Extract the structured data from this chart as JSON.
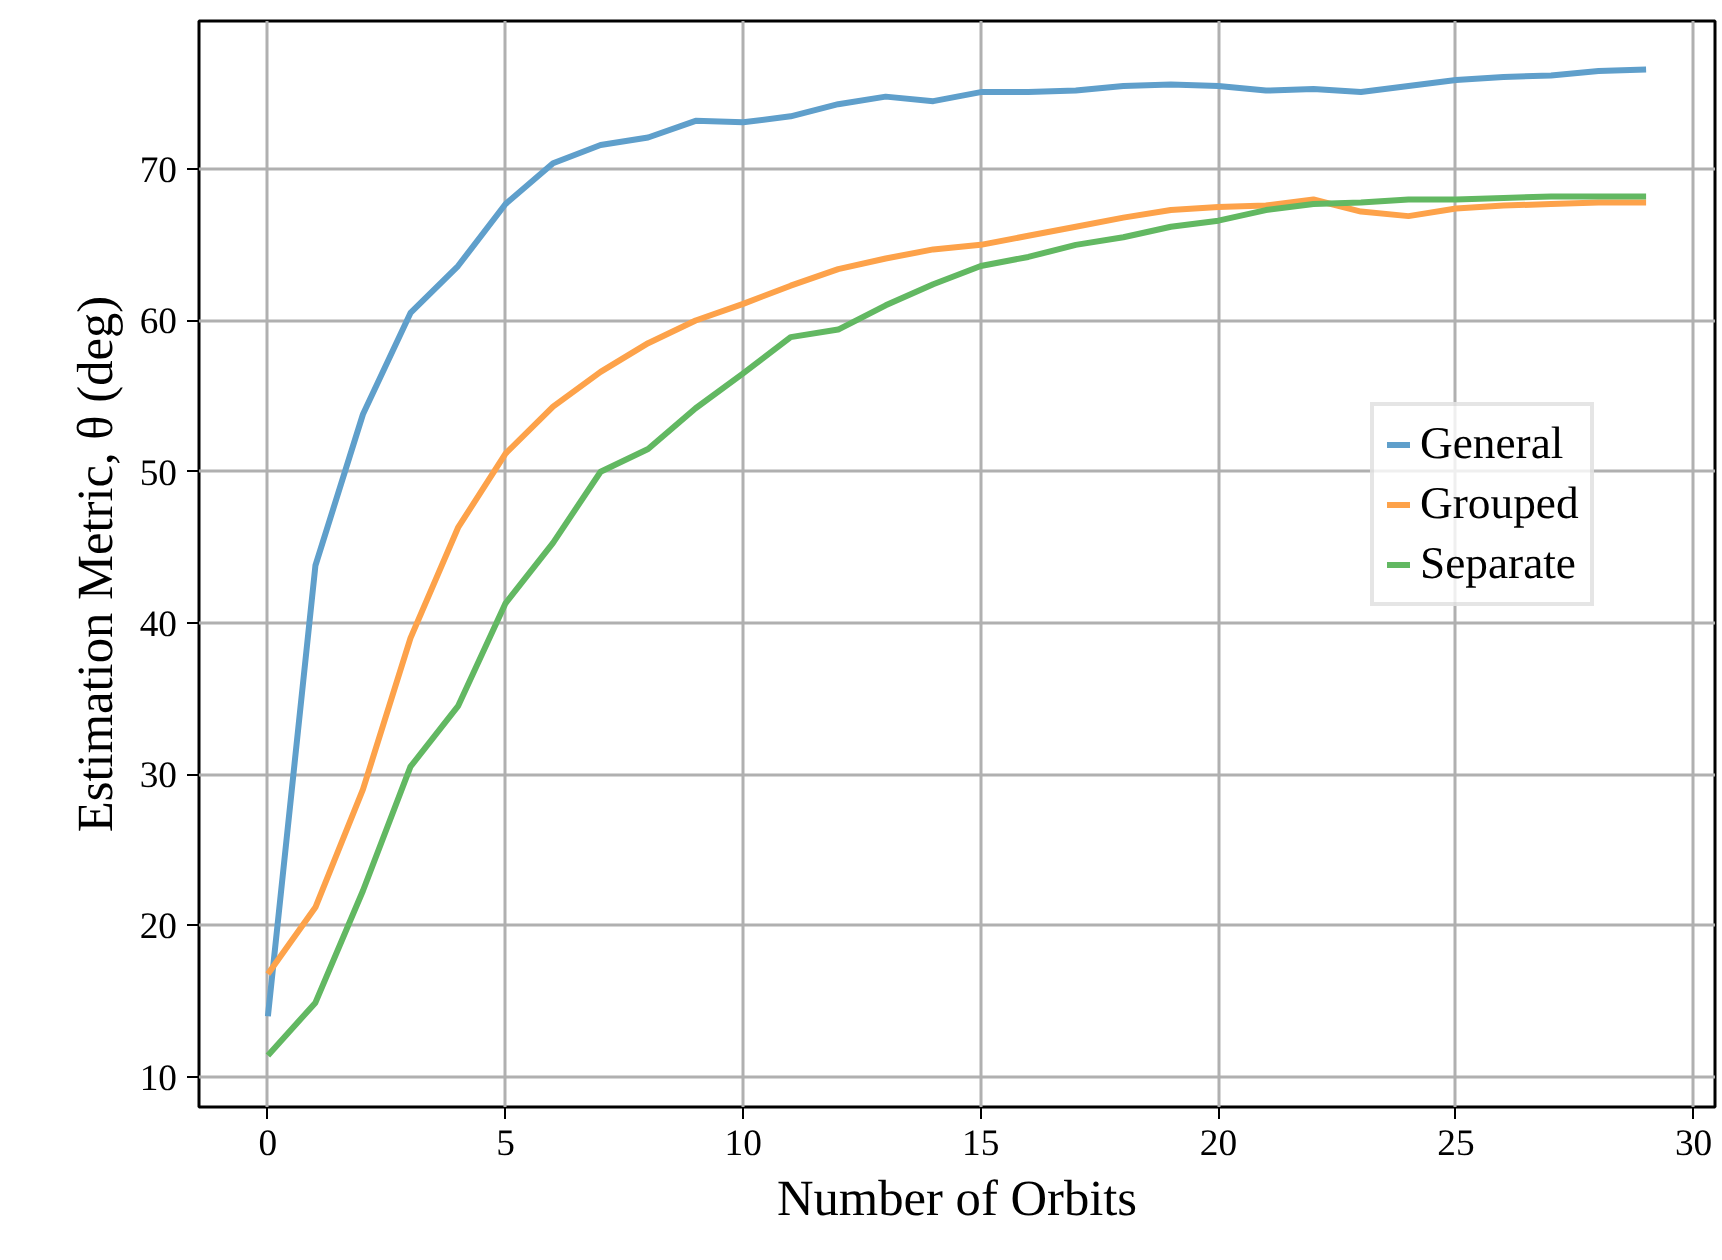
{
  "chart_data": {
    "type": "line",
    "xlabel": "Number of Orbits",
    "ylabel": "Estimation Metric, θ (deg)",
    "x": [
      0,
      1,
      2,
      3,
      4,
      5,
      6,
      7,
      8,
      9,
      10,
      11,
      12,
      13,
      14,
      15,
      16,
      17,
      18,
      19,
      20,
      21,
      22,
      23,
      24,
      25,
      26,
      27,
      28,
      29
    ],
    "series": [
      {
        "name": "General",
        "color": "#5f9fcb",
        "values": [
          14,
          43.8,
          53.8,
          60.5,
          63.6,
          67.7,
          70.4,
          71.6,
          72.1,
          73.2,
          73.1,
          73.5,
          74.3,
          74.8,
          74.5,
          75.1,
          75.1,
          75.2,
          75.5,
          75.6,
          75.5,
          75.2,
          75.3,
          75.1,
          75.5,
          75.9,
          76.1,
          76.2,
          76.5,
          76.6
        ]
      },
      {
        "name": "Grouped",
        "color": "#fda24a",
        "values": [
          16.8,
          21.2,
          29,
          39,
          46.3,
          51.2,
          54.3,
          56.6,
          58.5,
          60,
          61.1,
          62.3,
          63.4,
          64.1,
          64.7,
          65,
          65.6,
          66.2,
          66.8,
          67.3,
          67.5,
          67.6,
          68,
          67.2,
          66.9,
          67.4,
          67.6,
          67.7,
          67.8,
          67.8
        ]
      },
      {
        "name": "Separate",
        "color": "#62b862",
        "values": [
          11.4,
          14.9,
          22.3,
          30.5,
          34.5,
          41.3,
          45.3,
          50,
          51.5,
          54.2,
          56.5,
          58.9,
          59.4,
          61,
          62.4,
          63.6,
          64.2,
          65,
          65.5,
          66.2,
          66.6,
          67.3,
          67.7,
          67.8,
          68,
          68,
          68.1,
          68.2,
          68.2,
          68.2
        ]
      }
    ],
    "xlim": [
      -1.45,
      30.45
    ],
    "ylim": [
      8,
      79.8
    ],
    "xticks": [
      0,
      5,
      10,
      15,
      20,
      25,
      30
    ],
    "yticks": [
      10,
      20,
      30,
      40,
      50,
      60,
      70
    ],
    "grid": true,
    "legend": "top right"
  }
}
